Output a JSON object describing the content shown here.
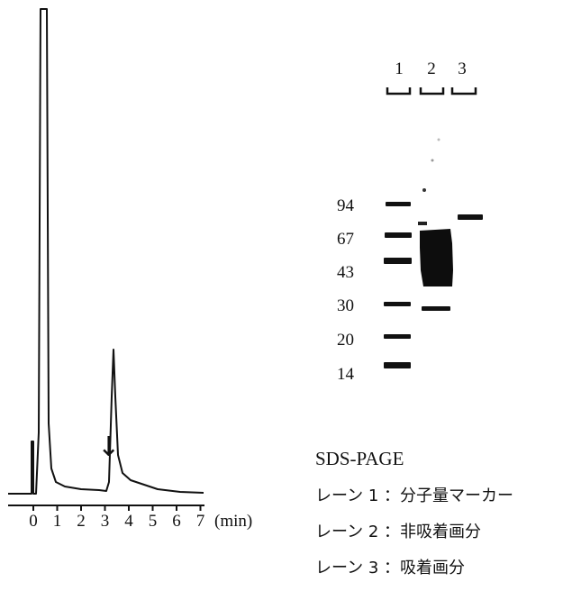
{
  "chromatogram": {
    "x_ticks": [
      "0",
      "1",
      "2",
      "3",
      "4",
      "5",
      "6",
      "7"
    ],
    "x_unit": "(min)",
    "marker_symbol": "↓"
  },
  "gel": {
    "lane_labels": [
      "1",
      "2",
      "3"
    ],
    "mw_markers": [
      "94",
      "67",
      "43",
      "30",
      "20",
      "14"
    ]
  },
  "legend": {
    "title": "SDS-PAGE",
    "items": [
      "レーン 1 ：分子量マーカー",
      "レーン 2 ：非吸着画分",
      "レーン 3 ：吸着画分"
    ]
  }
}
